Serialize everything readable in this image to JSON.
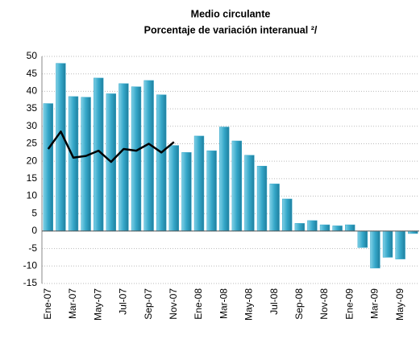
{
  "chart_data": {
    "type": "bar",
    "title": "Medio circulante",
    "subtitle": "Porcentaje de variación interanual ²/",
    "categories": [
      "Ene-07",
      null,
      "Mar-07",
      null,
      "May-07",
      null,
      "Jul-07",
      null,
      "Sep-07",
      null,
      "Nov-07",
      null,
      "Ene-08",
      null,
      "Mar-08",
      null,
      "May-08",
      null,
      "Jul-08",
      null,
      "Sep-08",
      null,
      "Nov-08",
      null,
      "Ene-09",
      null,
      "Mar-09",
      null,
      "May-09",
      null
    ],
    "series": [
      {
        "type": "bar",
        "color": "#35a7c9",
        "values": [
          36.5,
          48,
          38.5,
          38.3,
          43.8,
          39.3,
          42.2,
          41.3,
          43.1,
          39,
          24.5,
          22.5,
          27.2,
          23,
          29.8,
          25.8,
          21.7,
          18.6,
          13.5,
          9.2,
          2.2,
          3,
          1.8,
          1.5,
          1.8,
          -4.7,
          -10.6,
          -7.5,
          -8,
          -0.7
        ]
      },
      {
        "type": "line",
        "color": "#000000",
        "values": [
          23.5,
          28.5,
          21,
          21.5,
          23,
          19.8,
          23.5,
          23,
          25,
          22.5,
          25.5,
          null,
          null,
          null,
          null,
          null,
          null,
          null,
          null,
          null,
          null,
          null,
          null,
          null,
          null,
          null,
          null,
          null,
          null,
          null
        ]
      }
    ],
    "ylim": [
      -15,
      50
    ],
    "yticks": [
      -15,
      -10,
      -5,
      0,
      5,
      10,
      15,
      20,
      25,
      30,
      35,
      40,
      45,
      50
    ],
    "grid": true
  }
}
